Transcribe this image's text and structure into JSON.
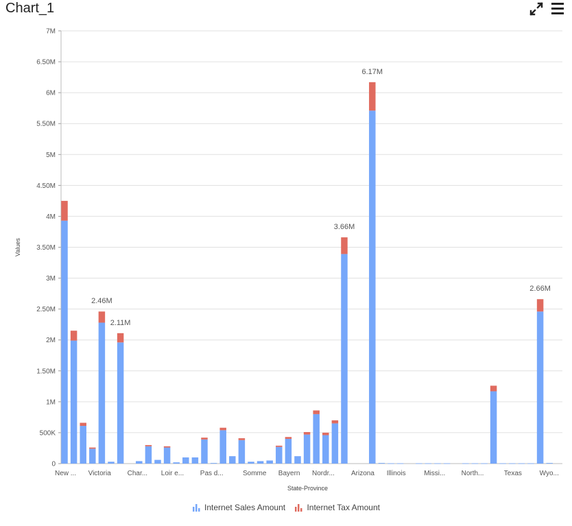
{
  "header": {
    "title": "Chart_1",
    "expand_icon": "expand-icon",
    "menu_icon": "menu-icon"
  },
  "chart_data": {
    "type": "bar",
    "stacked": true,
    "xlabel": "State-Province",
    "ylabel": "Values",
    "ylim": [
      0,
      7000000
    ],
    "yticks": [
      0,
      500000,
      1000000,
      1500000,
      2000000,
      2500000,
      3000000,
      3500000,
      4000000,
      4500000,
      5000000,
      5500000,
      6000000,
      6500000,
      7000000
    ],
    "ytick_labels": [
      "0",
      "500K",
      "1M",
      "1.50M",
      "2M",
      "2.50M",
      "3M",
      "3.50M",
      "4M",
      "4.50M",
      "5M",
      "5.50M",
      "6M",
      "6.50M",
      "7M"
    ],
    "grid": true,
    "legend_position": "bottom",
    "x_tick_labels": [
      {
        "index": 0,
        "label": "New ..."
      },
      {
        "index": 4,
        "label": "Victoria"
      },
      {
        "index": 8,
        "label": "Char..."
      },
      {
        "index": 12,
        "label": "Loir e..."
      },
      {
        "index": 16,
        "label": "Pas d..."
      },
      {
        "index": 20,
        "label": "Somme"
      },
      {
        "index": 24,
        "label": "Bayern"
      },
      {
        "index": 28,
        "label": "Nordr..."
      },
      {
        "index": 32,
        "label": "Arizona"
      },
      {
        "index": 36,
        "label": "Illinois"
      },
      {
        "index": 40,
        "label": "Missi..."
      },
      {
        "index": 44,
        "label": "North..."
      },
      {
        "index": 48,
        "label": "Texas"
      },
      {
        "index": 52,
        "label": "Wyo..."
      }
    ],
    "series": [
      {
        "name": "Internet Sales Amount",
        "color": "#76a7fa",
        "values": [
          3930000,
          1990000,
          610000,
          240000,
          2280000,
          30000,
          1960000,
          0,
          40000,
          280000,
          60000,
          260000,
          20000,
          100000,
          100000,
          390000,
          10000,
          540000,
          120000,
          380000,
          30000,
          40000,
          50000,
          270000,
          400000,
          120000,
          470000,
          800000,
          460000,
          650000,
          3390000,
          0,
          0,
          5710000,
          10000,
          5000,
          5000,
          0,
          5000,
          5000,
          5000,
          5000,
          0,
          5000,
          5000,
          5000,
          1170000,
          5000,
          5000,
          5000,
          5000,
          2460000,
          10000
        ]
      },
      {
        "name": "Internet Tax Amount",
        "color": "#e06b5f",
        "values": [
          320000,
          160000,
          50000,
          20000,
          180000,
          0,
          150000,
          0,
          0,
          20000,
          0,
          20000,
          0,
          0,
          0,
          30000,
          0,
          40000,
          0,
          30000,
          0,
          0,
          0,
          20000,
          30000,
          0,
          40000,
          60000,
          40000,
          50000,
          270000,
          0,
          0,
          460000,
          0,
          0,
          0,
          0,
          0,
          0,
          0,
          0,
          0,
          0,
          0,
          0,
          90000,
          0,
          0,
          0,
          0,
          200000,
          0
        ]
      }
    ],
    "data_labels": [
      {
        "index": 4,
        "text": "2.46M"
      },
      {
        "index": 6,
        "text": "2.11M"
      },
      {
        "index": 30,
        "text": "3.66M"
      },
      {
        "index": 33,
        "text": "6.17M"
      },
      {
        "index": 51,
        "text": "2.66M"
      }
    ]
  }
}
